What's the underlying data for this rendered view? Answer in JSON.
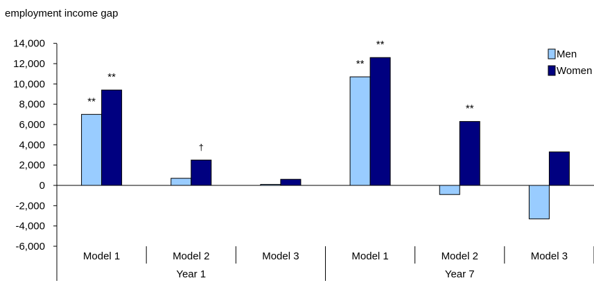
{
  "chart_data": {
    "type": "bar",
    "title": "employment income gap",
    "xlabel": "",
    "ylabel": "",
    "ylim": [
      -6000,
      14000
    ],
    "yticks": [
      14000,
      12000,
      10000,
      8000,
      6000,
      4000,
      2000,
      0,
      -2000,
      -4000,
      -6000
    ],
    "ytick_labels": [
      "14,000",
      "12,000",
      "10,000",
      "8,000",
      "6,000",
      "4,000",
      "2,000",
      "0",
      "-2,000",
      "-4,000",
      "-6,000"
    ],
    "categories": [
      "Model 1",
      "Model 2",
      "Model 3",
      "Model 1",
      "Model 2",
      "Model 3"
    ],
    "groups": [
      {
        "label": "Year 1",
        "span": 3
      },
      {
        "label": "Year 7",
        "span": 3
      }
    ],
    "series": [
      {
        "name": "Men",
        "color": "#99ccff",
        "values": [
          7000,
          700,
          100,
          10700,
          -900,
          -3300
        ],
        "annotations": [
          "**",
          "",
          "",
          "**",
          "",
          ""
        ]
      },
      {
        "name": "Women",
        "color": "#000080",
        "values": [
          9400,
          2500,
          600,
          12600,
          6300,
          3300
        ],
        "annotations": [
          "**",
          "†",
          "",
          "**",
          "**",
          ""
        ]
      }
    ],
    "legend_position": "top-right",
    "grid": false
  }
}
